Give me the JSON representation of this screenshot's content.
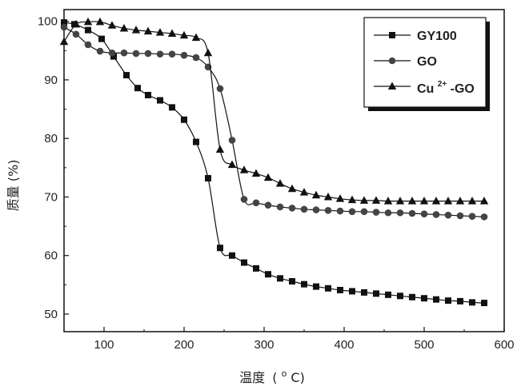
{
  "chart_data": {
    "type": "line",
    "title": "",
    "xlabel": "温度",
    "xlabel_unit": "(",
    "xlabel_unit_sup": "o",
    "xlabel_unit_end": "C)",
    "ylabel": "质量 (%)",
    "xlim": [
      50,
      600
    ],
    "ylim": [
      47,
      102
    ],
    "xticks": [
      100,
      200,
      300,
      400,
      500,
      600
    ],
    "yticks": [
      50,
      60,
      70,
      80,
      90,
      100
    ],
    "grid": false,
    "legend_position": "top-right",
    "series": [
      {
        "name": "GY100",
        "marker": "square",
        "color": "#111111",
        "x": [
          50,
          63,
          80,
          97,
          112,
          128,
          142,
          155,
          170,
          185,
          200,
          215,
          230,
          245,
          260,
          275,
          290,
          305,
          320,
          335,
          350,
          365,
          380,
          395,
          410,
          425,
          440,
          455,
          470,
          485,
          500,
          515,
          530,
          545,
          560,
          575
        ],
        "values": [
          99.8,
          99.5,
          98.5,
          97.0,
          94.0,
          90.8,
          88.6,
          87.4,
          86.5,
          85.3,
          83.2,
          79.4,
          73.2,
          61.3,
          60.0,
          58.8,
          57.8,
          56.8,
          56.1,
          55.6,
          55.1,
          54.7,
          54.4,
          54.1,
          53.9,
          53.7,
          53.5,
          53.3,
          53.1,
          52.9,
          52.7,
          52.5,
          52.3,
          52.2,
          52.0,
          51.9
        ]
      },
      {
        "name": "GO",
        "marker": "circle",
        "color": "#444444",
        "x": [
          50,
          65,
          80,
          95,
          110,
          125,
          140,
          155,
          170,
          185,
          200,
          215,
          230,
          245,
          260,
          275,
          290,
          305,
          320,
          335,
          350,
          365,
          380,
          395,
          410,
          425,
          440,
          455,
          470,
          485,
          500,
          515,
          530,
          545,
          560,
          575
        ],
        "values": [
          99.0,
          97.8,
          96.0,
          94.9,
          94.6,
          94.6,
          94.5,
          94.5,
          94.4,
          94.4,
          94.2,
          93.8,
          92.2,
          88.5,
          79.7,
          69.6,
          69.0,
          68.6,
          68.3,
          68.1,
          67.9,
          67.8,
          67.7,
          67.6,
          67.5,
          67.5,
          67.4,
          67.3,
          67.3,
          67.2,
          67.1,
          67.0,
          66.9,
          66.8,
          66.7,
          66.6
        ]
      },
      {
        "name": "Cu2+-GO",
        "legend_parts": [
          "Cu",
          "2+",
          "-GO"
        ],
        "marker": "triangle",
        "color": "#111111",
        "x": [
          50,
          65,
          80,
          95,
          110,
          125,
          140,
          155,
          170,
          185,
          200,
          215,
          230,
          245,
          260,
          275,
          290,
          305,
          320,
          335,
          350,
          365,
          380,
          395,
          410,
          425,
          440,
          455,
          470,
          485,
          500,
          515,
          530,
          545,
          560,
          575
        ],
        "values": [
          96.5,
          99.5,
          99.9,
          99.9,
          99.3,
          98.8,
          98.5,
          98.3,
          98.1,
          97.9,
          97.6,
          97.2,
          94.6,
          78.1,
          75.5,
          74.6,
          74.0,
          73.3,
          72.3,
          71.4,
          70.8,
          70.3,
          70.0,
          69.7,
          69.5,
          69.4,
          69.4,
          69.3,
          69.3,
          69.3,
          69.3,
          69.3,
          69.3,
          69.3,
          69.3,
          69.3
        ]
      }
    ]
  }
}
